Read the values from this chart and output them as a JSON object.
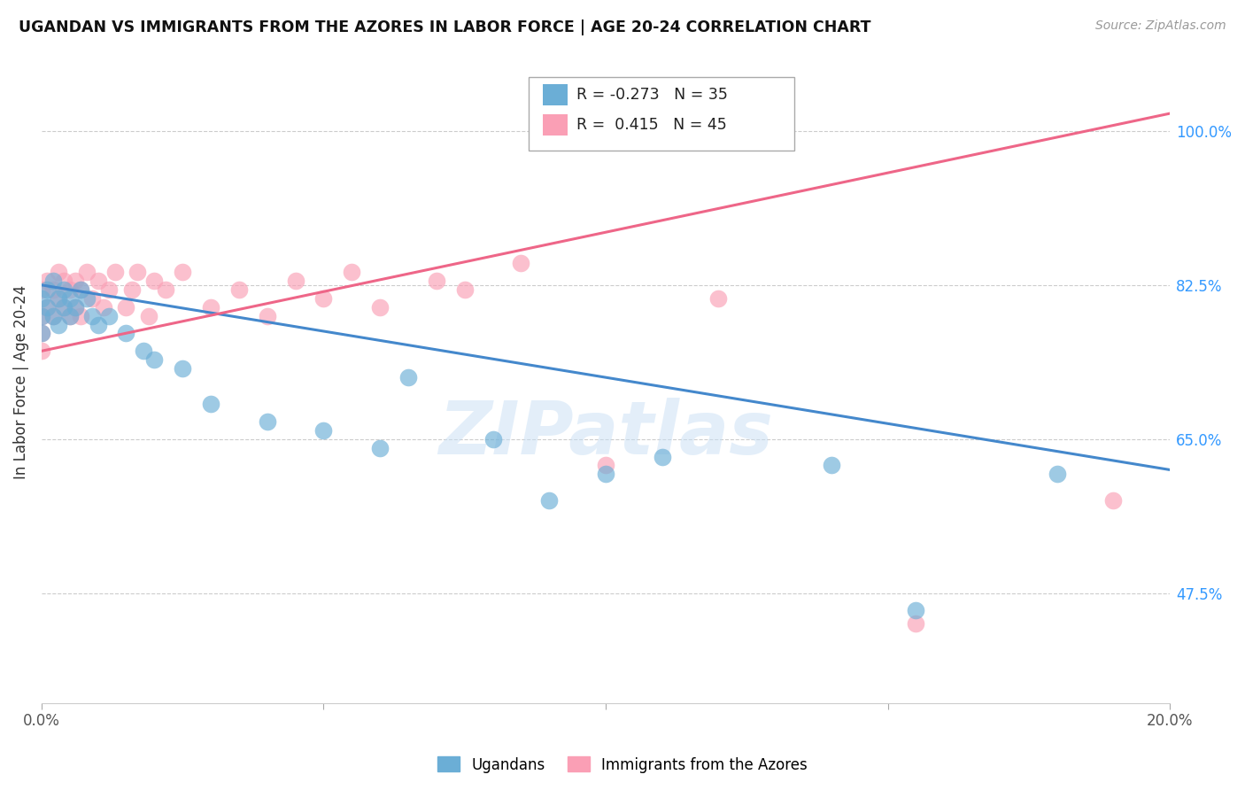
{
  "title": "UGANDAN VS IMMIGRANTS FROM THE AZORES IN LABOR FORCE | AGE 20-24 CORRELATION CHART",
  "source": "Source: ZipAtlas.com",
  "ylabel": "In Labor Force | Age 20-24",
  "xlim": [
    0.0,
    0.2
  ],
  "ylim": [
    0.35,
    1.08
  ],
  "xticks": [
    0.0,
    0.05,
    0.1,
    0.15,
    0.2
  ],
  "xtick_labels": [
    "0.0%",
    "",
    "",
    "",
    "20.0%"
  ],
  "ytick_labels": [
    "100.0%",
    "82.5%",
    "65.0%",
    "47.5%"
  ],
  "yticks": [
    1.0,
    0.825,
    0.65,
    0.475
  ],
  "ugandan_R": -0.273,
  "ugandan_N": 35,
  "azores_R": 0.415,
  "azores_N": 45,
  "ugandan_color": "#6baed6",
  "azores_color": "#fa9fb5",
  "ugandan_line_color": "#4488cc",
  "azores_line_color": "#ee6688",
  "watermark": "ZIPatlas",
  "ugandan_line_x0": 0.0,
  "ugandan_line_y0": 0.825,
  "ugandan_line_x1": 0.2,
  "ugandan_line_y1": 0.615,
  "azores_line_x0": 0.0,
  "azores_line_y0": 0.75,
  "azores_line_x1": 0.2,
  "azores_line_y1": 1.02,
  "ugandan_x": [
    0.0,
    0.0,
    0.0,
    0.001,
    0.001,
    0.002,
    0.002,
    0.003,
    0.003,
    0.004,
    0.004,
    0.005,
    0.005,
    0.006,
    0.007,
    0.008,
    0.009,
    0.01,
    0.012,
    0.015,
    0.018,
    0.02,
    0.025,
    0.03,
    0.04,
    0.05,
    0.06,
    0.065,
    0.08,
    0.09,
    0.1,
    0.11,
    0.14,
    0.155,
    0.18
  ],
  "ugandan_y": [
    0.81,
    0.79,
    0.77,
    0.82,
    0.8,
    0.83,
    0.79,
    0.81,
    0.78,
    0.82,
    0.8,
    0.81,
    0.79,
    0.8,
    0.82,
    0.81,
    0.79,
    0.78,
    0.79,
    0.77,
    0.75,
    0.74,
    0.73,
    0.69,
    0.67,
    0.66,
    0.64,
    0.72,
    0.65,
    0.58,
    0.61,
    0.63,
    0.62,
    0.455,
    0.61
  ],
  "azores_x": [
    0.0,
    0.0,
    0.0,
    0.0,
    0.001,
    0.001,
    0.002,
    0.002,
    0.003,
    0.003,
    0.004,
    0.004,
    0.005,
    0.005,
    0.006,
    0.006,
    0.007,
    0.007,
    0.008,
    0.009,
    0.01,
    0.011,
    0.012,
    0.013,
    0.015,
    0.016,
    0.017,
    0.019,
    0.02,
    0.022,
    0.025,
    0.03,
    0.035,
    0.04,
    0.045,
    0.05,
    0.055,
    0.06,
    0.07,
    0.075,
    0.085,
    0.1,
    0.12,
    0.155,
    0.19
  ],
  "azores_y": [
    0.82,
    0.79,
    0.77,
    0.75,
    0.83,
    0.8,
    0.82,
    0.79,
    0.84,
    0.81,
    0.83,
    0.8,
    0.82,
    0.79,
    0.83,
    0.8,
    0.82,
    0.79,
    0.84,
    0.81,
    0.83,
    0.8,
    0.82,
    0.84,
    0.8,
    0.82,
    0.84,
    0.79,
    0.83,
    0.82,
    0.84,
    0.8,
    0.82,
    0.79,
    0.83,
    0.81,
    0.84,
    0.8,
    0.83,
    0.82,
    0.85,
    0.62,
    0.81,
    0.44,
    0.58
  ]
}
